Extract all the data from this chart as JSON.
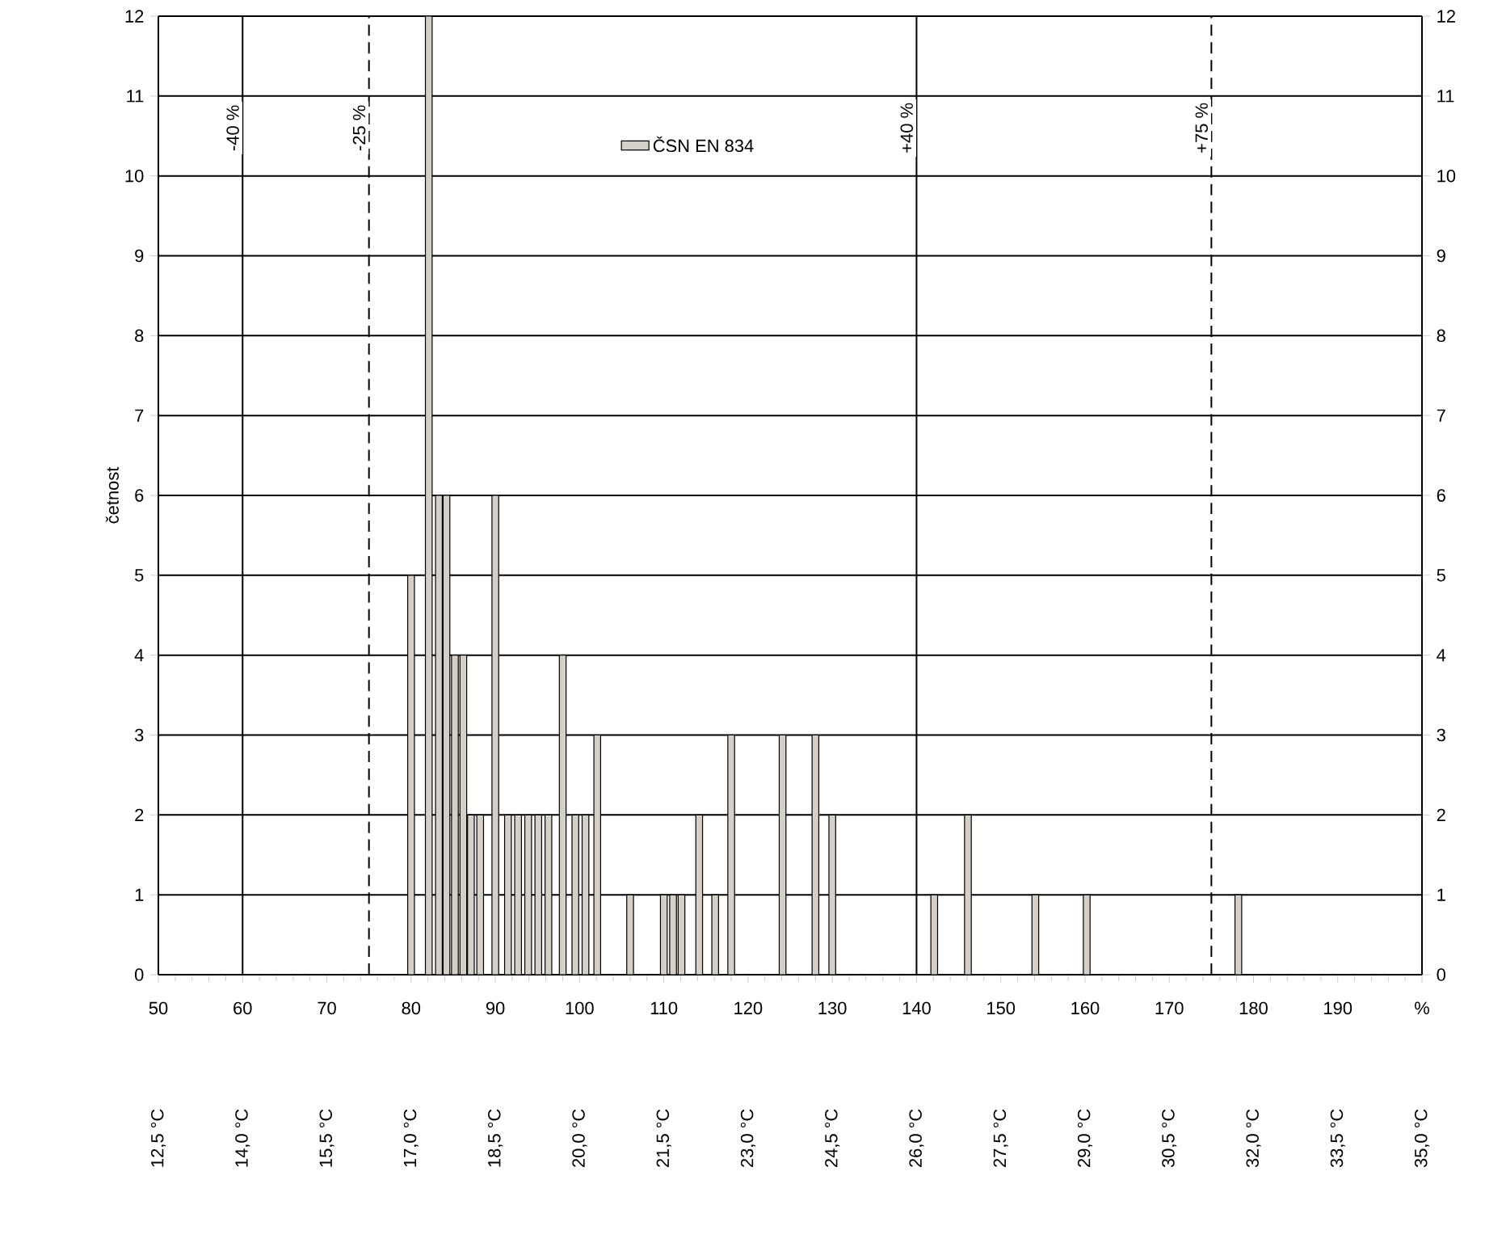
{
  "chart_data": {
    "type": "bar",
    "ylabel": "četnost",
    "series": [
      {
        "name": "ČSN EN 834",
        "color": "#d4d0c8",
        "x": [
          80.0,
          82.1,
          83.3,
          84.2,
          85.2,
          86.2,
          87.1,
          88.2,
          90.0,
          91.5,
          92.7,
          93.9,
          95.1,
          96.3,
          98.0,
          99.5,
          100.7,
          102.1,
          106.0,
          110.0,
          111.1,
          112.1,
          114.2,
          116.1,
          118.0,
          124.1,
          128.0,
          130.0,
          142.1,
          146.1,
          154.1,
          160.2,
          178.2
        ],
        "values": [
          5,
          12,
          6,
          6,
          4,
          4,
          2,
          2,
          6,
          2,
          2,
          2,
          2,
          2,
          4,
          2,
          2,
          3,
          1,
          1,
          1,
          1,
          2,
          1,
          3,
          3,
          3,
          2,
          1,
          2,
          1,
          1,
          1
        ]
      }
    ],
    "xlim": [
      50,
      200
    ],
    "xticks": [
      50,
      60,
      70,
      80,
      90,
      100,
      110,
      120,
      130,
      140,
      150,
      160,
      170,
      180,
      190,
      {
        "value": 200,
        "label": "%"
      }
    ],
    "x2lim": [
      12.5,
      35.0
    ],
    "x2ticks": [
      {
        "value": 12.5,
        "label": "12,5 °C"
      },
      {
        "value": 14.0,
        "label": "14,0 °C"
      },
      {
        "value": 15.5,
        "label": "15,5 °C"
      },
      {
        "value": 17.0,
        "label": "17,0 °C"
      },
      {
        "value": 18.5,
        "label": "18,5 °C"
      },
      {
        "value": 20.0,
        "label": "20,0 °C"
      },
      {
        "value": 21.5,
        "label": "21,5 °C"
      },
      {
        "value": 23.0,
        "label": "23,0 °C"
      },
      {
        "value": 24.5,
        "label": "24,5 °C"
      },
      {
        "value": 26.0,
        "label": "26,0 °C"
      },
      {
        "value": 27.5,
        "label": "27,5 °C"
      },
      {
        "value": 29.0,
        "label": "29,0 °C"
      },
      {
        "value": 30.5,
        "label": "30,5 °C"
      },
      {
        "value": 32.0,
        "label": "32,0 °C"
      },
      {
        "value": 33.5,
        "label": "33,5 °C"
      },
      {
        "value": 35.0,
        "label": "35,0 °C"
      }
    ],
    "ylim": [
      0,
      12
    ],
    "yticks": [
      0,
      1,
      2,
      3,
      4,
      5,
      6,
      7,
      8,
      9,
      10,
      11,
      12
    ],
    "y2lim": [
      0,
      12
    ],
    "y2ticks": [
      0,
      1,
      2,
      3,
      4,
      5,
      6,
      7,
      8,
      9,
      10,
      11,
      12
    ],
    "ref_lines": [
      {
        "axis": "x",
        "value": 60,
        "line_style": "solid"
      },
      {
        "axis": "x",
        "value": 75,
        "line_style": "dashed"
      },
      {
        "axis": "x",
        "value": 140,
        "line_style": "solid"
      },
      {
        "axis": "x",
        "value": 175,
        "line_style": "dashed"
      }
    ],
    "annotations": [
      {
        "text": "-40 %",
        "x": 60,
        "y": 10.6
      },
      {
        "text": "-25 %",
        "x": 75,
        "y": 10.6
      },
      {
        "text": "+40 %",
        "x": 140,
        "y": 10.6
      },
      {
        "text": "+75 %",
        "x": 175,
        "y": 10.6
      }
    ],
    "grid": "y",
    "legend": "top"
  }
}
